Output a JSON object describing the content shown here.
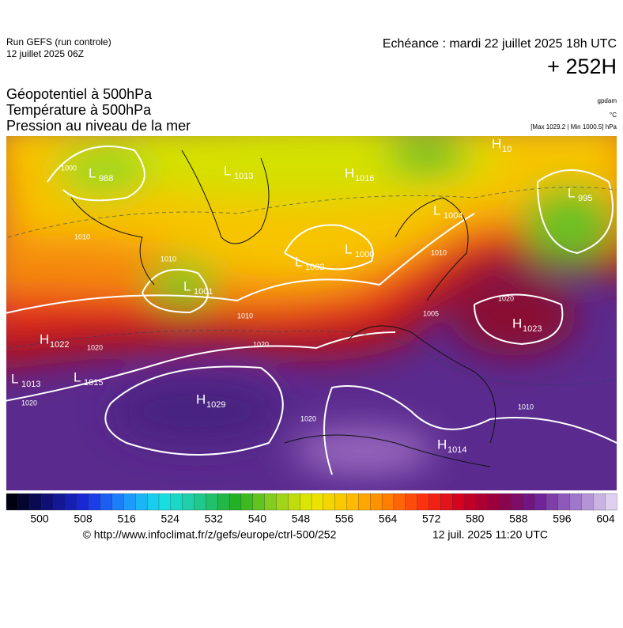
{
  "header": {
    "run": "Run GEFS (run controle)",
    "date": "12 juillet 2025 06Z",
    "valid": "Echéance : mardi 22 juillet 2025 18h UTC",
    "lead": "+ 252H",
    "fields": [
      "Géopotentiel à 500hPa",
      "Température à 500hPa",
      "Pression au niveau de la mer"
    ],
    "units": [
      "gpdam",
      "°C",
      "[Max 1029.2 | Min 1000.5] hPa"
    ]
  },
  "centers": [
    {
      "letter": "L",
      "value": "988"
    },
    {
      "letter": "L",
      "value": "1013"
    },
    {
      "letter": "H",
      "value": "1016"
    },
    {
      "letter": "H",
      "value": "10"
    },
    {
      "letter": "L",
      "value": "995"
    },
    {
      "letter": "L",
      "value": "1004"
    },
    {
      "letter": "L",
      "value": "1002"
    },
    {
      "letter": "L",
      "value": "1000"
    },
    {
      "letter": "L",
      "value": "1001"
    },
    {
      "letter": "H",
      "value": "1022"
    },
    {
      "letter": "H",
      "value": "1023"
    },
    {
      "letter": "L",
      "value": "1013"
    },
    {
      "letter": "L",
      "value": "1015"
    },
    {
      "letter": "H",
      "value": "1029"
    },
    {
      "letter": "H",
      "value": "1014"
    }
  ],
  "isobar_labels": [
    "1000",
    "1010",
    "1010",
    "1010",
    "1020",
    "1020",
    "1020",
    "1020",
    "1020",
    "1010",
    "1005",
    "1010"
  ],
  "colorbar": {
    "ticks": [
      500,
      508,
      516,
      524,
      532,
      540,
      548,
      556,
      564,
      572,
      580,
      588,
      596,
      604
    ]
  },
  "footer": {
    "source": "© http://www.infoclimat.fr/z/gefs/europe/ctrl-500/252",
    "issued": "12 juil. 2025 11:20 UTC"
  }
}
